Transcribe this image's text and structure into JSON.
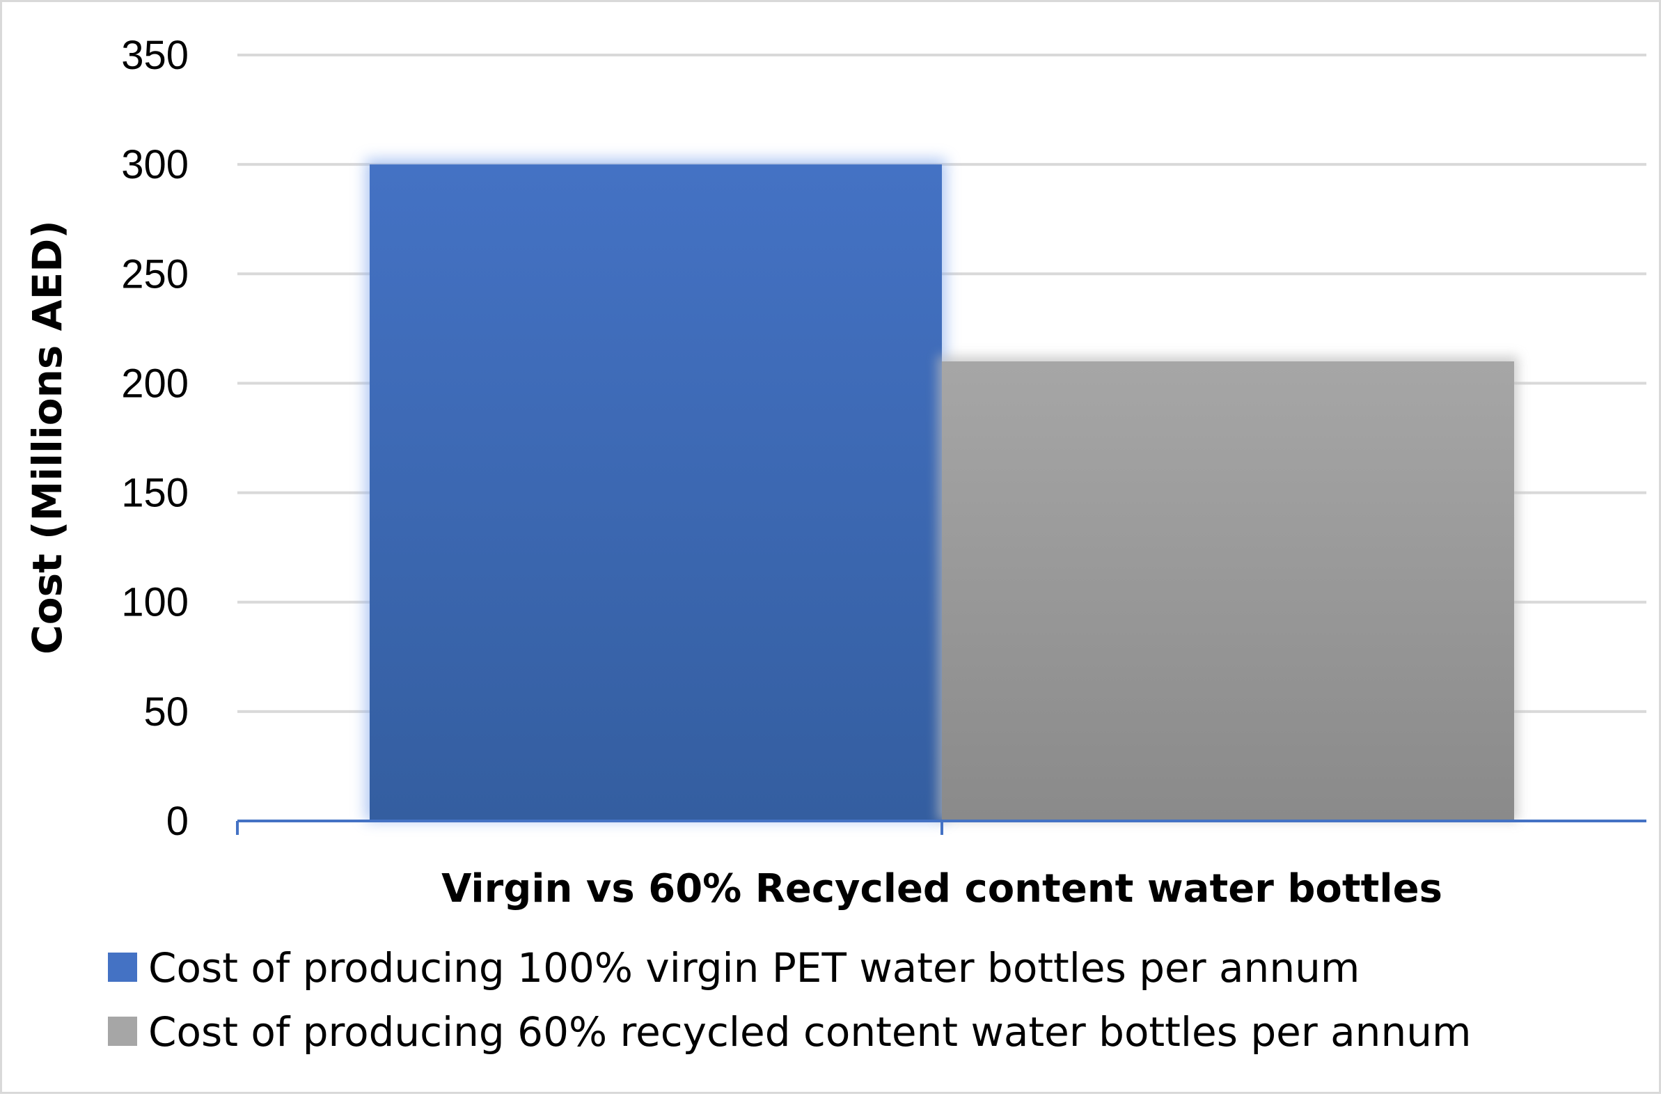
{
  "chart_data": {
    "type": "bar",
    "title": "",
    "xlabel": "Virgin vs 60% Recycled content water bottles",
    "ylabel": "Cost (Millions AED)",
    "ylim": [
      0,
      350
    ],
    "ytick_step": 50,
    "yticks": [
      "0",
      "50",
      "100",
      "150",
      "200",
      "250",
      "300",
      "350"
    ],
    "grid": true,
    "legend_position": "bottom",
    "categories": [
      ""
    ],
    "series": [
      {
        "name": "Cost of producing 100% virgin PET water bottles per annum",
        "values": [
          300
        ],
        "color": "#4472c4",
        "color_dark": "#345ea0"
      },
      {
        "name": "Cost of producing 60% recycled content water bottles per annum",
        "values": [
          210
        ],
        "color": "#a6a6a6",
        "color_dark": "#8a8a8a"
      }
    ],
    "axis_color": "#4472c4",
    "grid_color": "#d9d9d9"
  }
}
